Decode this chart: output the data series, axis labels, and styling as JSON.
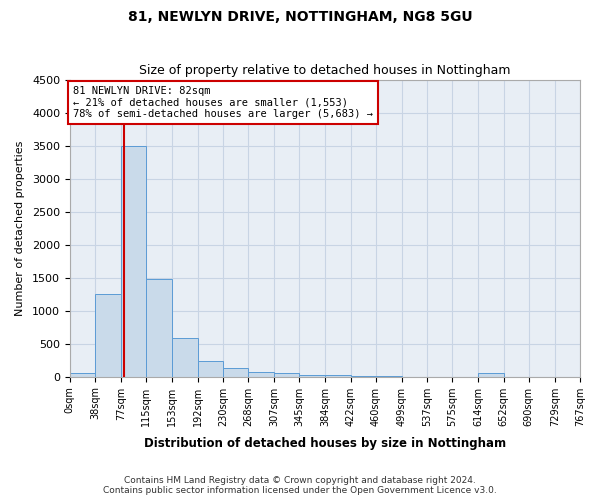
{
  "title": "81, NEWLYN DRIVE, NOTTINGHAM, NG8 5GU",
  "subtitle": "Size of property relative to detached houses in Nottingham",
  "xlabel": "Distribution of detached houses by size in Nottingham",
  "ylabel": "Number of detached properties",
  "footer_line1": "Contains HM Land Registry data © Crown copyright and database right 2024.",
  "footer_line2": "Contains public sector information licensed under the Open Government Licence v3.0.",
  "bar_color": "#c9daea",
  "bar_edge_color": "#5b9bd5",
  "annotation_box_color": "#ffffff",
  "annotation_border_color": "#cc0000",
  "vline_color": "#cc0000",
  "property_size": 82,
  "annotation_line1": "81 NEWLYN DRIVE: 82sqm",
  "annotation_line2": "← 21% of detached houses are smaller (1,553)",
  "annotation_line3": "78% of semi-detached houses are larger (5,683) →",
  "bin_labels": [
    "0sqm",
    "38sqm",
    "77sqm",
    "115sqm",
    "153sqm",
    "192sqm",
    "230sqm",
    "268sqm",
    "307sqm",
    "345sqm",
    "384sqm",
    "422sqm",
    "460sqm",
    "499sqm",
    "537sqm",
    "575sqm",
    "614sqm",
    "652sqm",
    "690sqm",
    "729sqm",
    "767sqm"
  ],
  "bin_edges": [
    0,
    38,
    77,
    115,
    153,
    192,
    230,
    268,
    307,
    345,
    384,
    422,
    460,
    499,
    537,
    575,
    614,
    652,
    690,
    729,
    767
  ],
  "bar_heights": [
    50,
    1250,
    3500,
    1480,
    580,
    240,
    130,
    75,
    50,
    30,
    20,
    10,
    5,
    0,
    0,
    0,
    50,
    0,
    0,
    0
  ],
  "ylim": [
    0,
    4500
  ],
  "yticks": [
    0,
    500,
    1000,
    1500,
    2000,
    2500,
    3000,
    3500,
    4000,
    4500
  ],
  "background_color": "#ffffff",
  "ax_background_color": "#e8eef5",
  "grid_color": "#c8d4e4"
}
